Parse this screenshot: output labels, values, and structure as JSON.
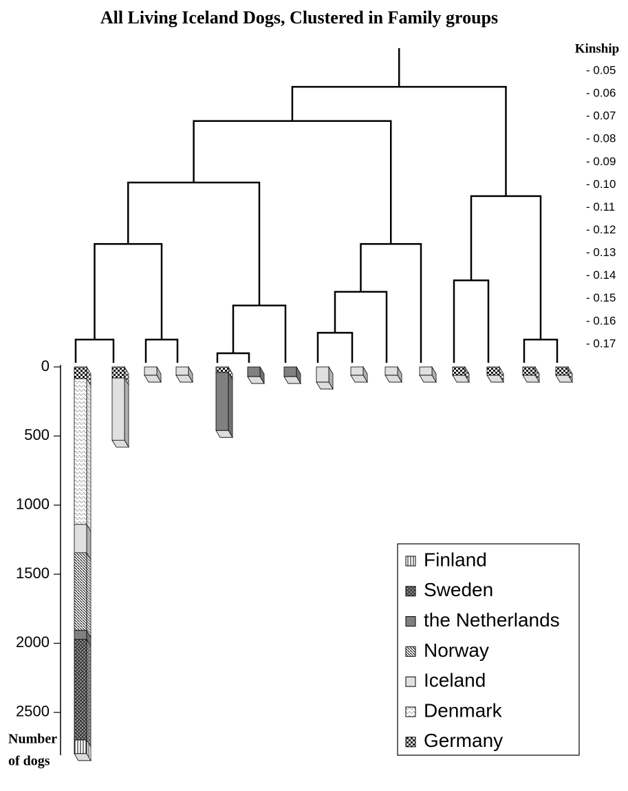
{
  "chart_data": {
    "type": "dendrogram-bar",
    "title": "All Living Iceland Dogs, Clustered in Family groups",
    "y2label": "Kinship",
    "ylabel_lines": [
      "Number",
      "of dogs"
    ],
    "ylim": [
      0,
      2800
    ],
    "yticks": [
      0,
      500,
      1000,
      1500,
      2000,
      2500
    ],
    "y2lim": [
      0.04,
      0.18
    ],
    "y2ticks": [
      {
        "value": 0.05,
        "label": "- 0.05"
      },
      {
        "value": 0.06,
        "label": "- 0.06"
      },
      {
        "value": 0.07,
        "label": "- 0.07"
      },
      {
        "value": 0.08,
        "label": "- 0.08"
      },
      {
        "value": 0.09,
        "label": "- 0.09"
      },
      {
        "value": 0.1,
        "label": "- 0.10"
      },
      {
        "value": 0.11,
        "label": "- 0.11"
      },
      {
        "value": 0.12,
        "label": "- 0.12"
      },
      {
        "value": 0.13,
        "label": "- 0.13"
      },
      {
        "value": 0.14,
        "label": "- 0.14"
      },
      {
        "value": 0.15,
        "label": "- 0.15"
      },
      {
        "value": 0.16,
        "label": "- 0.16"
      },
      {
        "value": 0.17,
        "label": "- 0.17"
      }
    ],
    "tree": {
      "kinship": 0.057,
      "children": [
        {
          "kinship": 0.072,
          "children": [
            {
              "kinship": 0.099,
              "children": [
                {
                  "kinship": 0.126,
                  "children": [
                    {
                      "kinship": 0.168,
                      "children": [
                        {},
                        {}
                      ]
                    },
                    {
                      "kinship": 0.168,
                      "children": [
                        {},
                        {}
                      ]
                    }
                  ]
                },
                {
                  "kinship": 0.153,
                  "children": [
                    {
                      "kinship": 0.174,
                      "children": [
                        {},
                        {}
                      ]
                    },
                    {}
                  ]
                }
              ]
            },
            {
              "kinship": 0.126,
              "children": [
                {
                  "kinship": 0.147,
                  "children": [
                    {
                      "kinship": 0.165,
                      "children": [
                        {},
                        {}
                      ]
                    },
                    {}
                  ]
                },
                {}
              ]
            }
          ]
        },
        {
          "kinship": 0.105,
          "children": [
            {
              "kinship": 0.142,
              "children": [
                {},
                {}
              ]
            },
            {
              "kinship": 0.168,
              "children": [
                {},
                {}
              ]
            }
          ]
        }
      ]
    },
    "legend": "bottom-right",
    "series": [
      {
        "name": "Finland",
        "color": "#ffffff",
        "pattern": "vertical-lines",
        "values": [
          99,
          null,
          null,
          null,
          null,
          null,
          null,
          null,
          null,
          null,
          null,
          null,
          null,
          null,
          null
        ]
      },
      {
        "name": "Sweden",
        "color": "#8c8c8c",
        "pattern": "crosshatch",
        "values": [
          728,
          null,
          null,
          null,
          null,
          null,
          null,
          null,
          null,
          null,
          null,
          null,
          null,
          null,
          null
        ]
      },
      {
        "name": "the Netherlands",
        "color": "#808080",
        "pattern": "solid",
        "values": [
          65,
          null,
          null,
          null,
          420,
          70,
          70,
          null,
          null,
          null,
          null,
          null,
          null,
          null,
          null
        ]
      },
      {
        "name": "Norway",
        "color": "#ffffff",
        "pattern": "diagonal",
        "values": [
          562,
          null,
          null,
          null,
          null,
          null,
          null,
          null,
          null,
          null,
          null,
          null,
          null,
          null,
          null
        ]
      },
      {
        "name": "Iceland",
        "color": "#e0e0e0",
        "pattern": "solid",
        "values": [
          205,
          450,
          60,
          60,
          null,
          null,
          null,
          110,
          60,
          60,
          60,
          null,
          null,
          null,
          null
        ]
      },
      {
        "name": "Denmark",
        "color": "#ffffff",
        "pattern": "dots",
        "values": [
          1055,
          null,
          null,
          null,
          null,
          null,
          null,
          null,
          null,
          null,
          null,
          null,
          null,
          null,
          null
        ]
      },
      {
        "name": "Germany",
        "color": "#ffffff",
        "pattern": "checker",
        "values": [
          85,
          80,
          null,
          null,
          40,
          null,
          null,
          null,
          null,
          null,
          null,
          60,
          60,
          60,
          60
        ]
      }
    ]
  }
}
